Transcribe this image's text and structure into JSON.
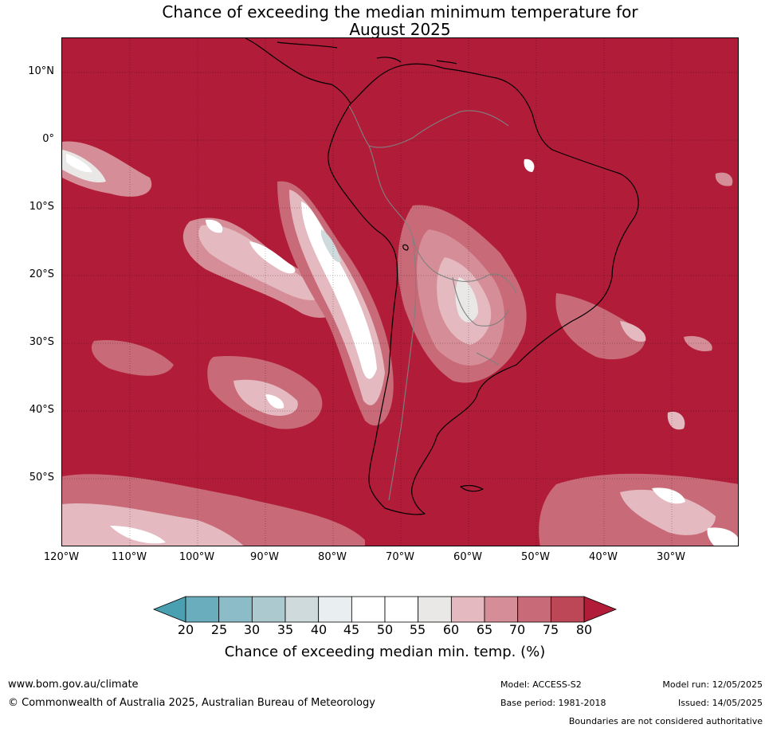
{
  "title": {
    "line1": "Chance of exceeding the median minimum temperature for",
    "line2": "August 2025"
  },
  "map": {
    "lat_labels": [
      "10°N",
      "0°",
      "10°S",
      "20°S",
      "30°S",
      "40°S",
      "50°S"
    ],
    "lon_labels": [
      "120°W",
      "110°W",
      "100°W",
      "90°W",
      "80°W",
      "70°W",
      "60°W",
      "50°W",
      "40°W",
      "30°W"
    ],
    "background_color": "#b11c39",
    "land_outline_color": "#000000",
    "border_color": "#808080",
    "gridline_color": "#000000"
  },
  "colorbar": {
    "ticks": [
      "20",
      "25",
      "30",
      "35",
      "40",
      "45",
      "50",
      "55",
      "60",
      "65",
      "70",
      "75",
      "80"
    ],
    "colors": [
      "#4aa0b0",
      "#6aaebd",
      "#8cbcc8",
      "#abc9cf",
      "#cfdadd",
      "#e9eff1",
      "#ffffff",
      "#ffffff",
      "#e9e8e6",
      "#e4b9bf",
      "#d58d97",
      "#c86a77",
      "#bd4657",
      "#b11c39"
    ],
    "label": "Chance of exceeding median min. temp. (%)"
  },
  "footer": {
    "website": "www.bom.gov.au/climate",
    "copyright": "© Commonwealth of Australia 2025, Australian Bureau of Meteorology",
    "model": "Model: ACCESS-S2",
    "base_period": "Base period: 1981-2018",
    "model_run": "Model run: 12/05/2025",
    "issued": "Issued: 14/05/2025",
    "boundary_note": "Boundaries are not considered authoritative"
  }
}
